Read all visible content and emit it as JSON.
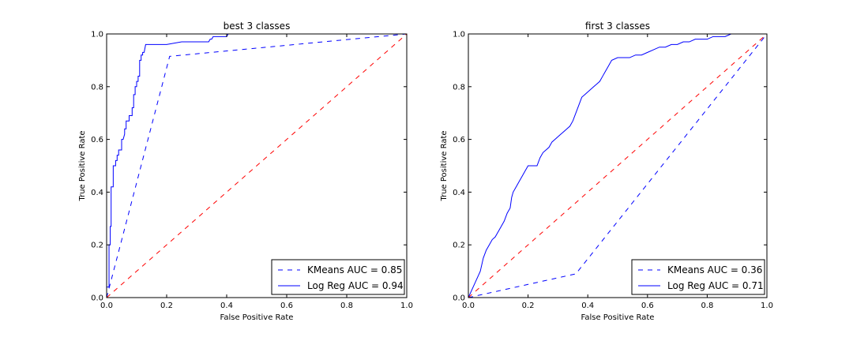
{
  "chart_data": [
    {
      "type": "line",
      "title": "best 3 classes",
      "xlabel": "False Positive Rate",
      "ylabel": "True Positive Rate",
      "xlim": [
        0,
        1
      ],
      "ylim": [
        0,
        1
      ],
      "xticks": [
        "0.0",
        "0.2",
        "0.4",
        "0.6",
        "0.8",
        "1.0"
      ],
      "yticks": [
        "0.0",
        "0.2",
        "0.4",
        "0.6",
        "0.8",
        "1.0"
      ],
      "legend_position": "bottom-right",
      "series": [
        {
          "name": "KMeans AUC = 0.85",
          "color": "#0000ff",
          "dash": "dashed",
          "in_legend": true,
          "x": [
            0.0,
            0.21,
            1.0
          ],
          "y": [
            0.0,
            0.915,
            1.0
          ]
        },
        {
          "name": "Log Reg AUC = 0.94",
          "color": "#0000ff",
          "dash": "solid",
          "in_legend": true,
          "x": [
            0.0,
            0.0,
            0.008,
            0.008,
            0.012,
            0.012,
            0.015,
            0.015,
            0.022,
            0.022,
            0.03,
            0.03,
            0.035,
            0.035,
            0.04,
            0.04,
            0.05,
            0.05,
            0.055,
            0.06,
            0.06,
            0.065,
            0.065,
            0.075,
            0.075,
            0.085,
            0.085,
            0.09,
            0.09,
            0.095,
            0.095,
            0.1,
            0.1,
            0.105,
            0.105,
            0.11,
            0.11,
            0.115,
            0.115,
            0.12,
            0.12,
            0.125,
            0.13,
            0.13,
            0.2,
            0.25,
            0.3,
            0.34,
            0.345,
            0.35,
            0.355,
            0.4,
            0.405,
            0.45,
            0.455,
            1.0
          ],
          "y": [
            0.0,
            0.04,
            0.04,
            0.2,
            0.2,
            0.27,
            0.27,
            0.42,
            0.42,
            0.5,
            0.5,
            0.52,
            0.52,
            0.54,
            0.54,
            0.56,
            0.56,
            0.6,
            0.6,
            0.62,
            0.64,
            0.64,
            0.67,
            0.67,
            0.69,
            0.69,
            0.72,
            0.72,
            0.77,
            0.77,
            0.8,
            0.8,
            0.82,
            0.82,
            0.84,
            0.84,
            0.9,
            0.9,
            0.92,
            0.92,
            0.93,
            0.93,
            0.96,
            0.96,
            0.96,
            0.97,
            0.97,
            0.97,
            0.98,
            0.98,
            0.99,
            0.99,
            1.0,
            1.0,
            1.0,
            1.0
          ]
        },
        {
          "name": "",
          "color": "#ff0000",
          "dash": "dashed",
          "in_legend": false,
          "x": [
            0,
            1
          ],
          "y": [
            0,
            1
          ]
        }
      ]
    },
    {
      "type": "line",
      "title": "first 3 classes",
      "xlabel": "False Positive Rate",
      "ylabel": "True Positive Rate",
      "xlim": [
        0,
        1
      ],
      "ylim": [
        0,
        1
      ],
      "xticks": [
        "0.0",
        "0.2",
        "0.4",
        "0.6",
        "0.8",
        "1.0"
      ],
      "yticks": [
        "0.0",
        "0.2",
        "0.4",
        "0.6",
        "0.8",
        "1.0"
      ],
      "legend_position": "bottom-right",
      "series": [
        {
          "name": "KMeans AUC = 0.36",
          "color": "#0000ff",
          "dash": "dashed",
          "in_legend": true,
          "x": [
            0.0,
            0.36,
            1.0
          ],
          "y": [
            0.0,
            0.09,
            1.0
          ]
        },
        {
          "name": "Log Reg AUC = 0.71",
          "color": "#0000ff",
          "dash": "solid",
          "in_legend": true,
          "x": [
            0.0,
            0.02,
            0.04,
            0.05,
            0.06,
            0.07,
            0.08,
            0.09,
            0.1,
            0.11,
            0.12,
            0.13,
            0.14,
            0.145,
            0.15,
            0.16,
            0.17,
            0.18,
            0.19,
            0.2,
            0.21,
            0.22,
            0.23,
            0.24,
            0.25,
            0.26,
            0.27,
            0.28,
            0.29,
            0.3,
            0.31,
            0.32,
            0.33,
            0.34,
            0.35,
            0.36,
            0.37,
            0.38,
            0.39,
            0.4,
            0.41,
            0.42,
            0.43,
            0.44,
            0.45,
            0.46,
            0.47,
            0.48,
            0.5,
            0.52,
            0.54,
            0.56,
            0.58,
            0.6,
            0.62,
            0.64,
            0.66,
            0.68,
            0.7,
            0.72,
            0.74,
            0.76,
            0.78,
            0.8,
            0.82,
            0.84,
            0.86,
            0.88,
            0.9,
            0.92,
            0.94,
            1.0
          ],
          "y": [
            0.0,
            0.05,
            0.1,
            0.15,
            0.18,
            0.2,
            0.22,
            0.23,
            0.25,
            0.27,
            0.29,
            0.32,
            0.34,
            0.38,
            0.4,
            0.42,
            0.44,
            0.46,
            0.48,
            0.5,
            0.5,
            0.5,
            0.5,
            0.53,
            0.55,
            0.56,
            0.57,
            0.59,
            0.6,
            0.61,
            0.62,
            0.63,
            0.64,
            0.65,
            0.67,
            0.7,
            0.73,
            0.76,
            0.77,
            0.78,
            0.79,
            0.8,
            0.81,
            0.82,
            0.84,
            0.86,
            0.88,
            0.9,
            0.91,
            0.91,
            0.91,
            0.92,
            0.92,
            0.93,
            0.94,
            0.95,
            0.95,
            0.96,
            0.96,
            0.97,
            0.97,
            0.98,
            0.98,
            0.98,
            0.99,
            0.99,
            0.99,
            1.0,
            1.0,
            1.0,
            1.0,
            1.0
          ]
        },
        {
          "name": "",
          "color": "#ff0000",
          "dash": "dashed",
          "in_legend": false,
          "x": [
            0,
            1
          ],
          "y": [
            0,
            1
          ]
        }
      ]
    }
  ]
}
